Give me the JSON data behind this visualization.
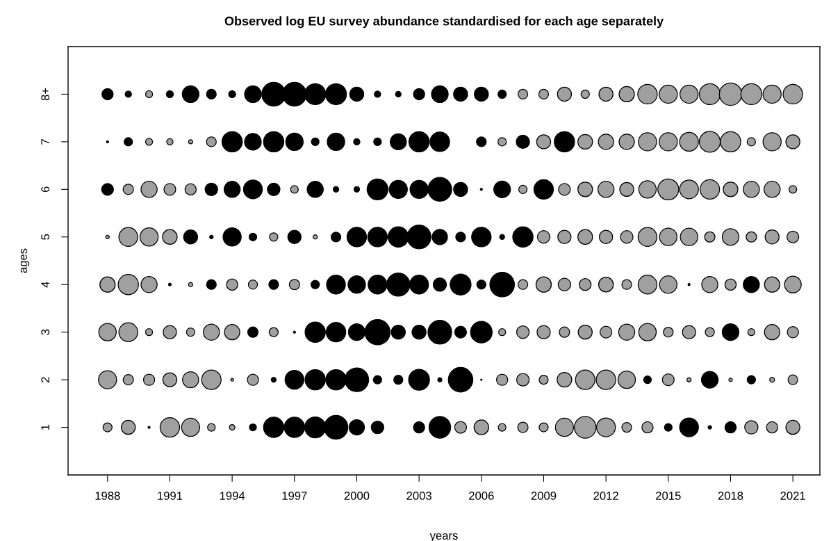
{
  "chart_data": {
    "type": "bubble",
    "title": "Observed log EU survey abundance standardised for each age separately",
    "xlabel": "years",
    "ylabel": "ages",
    "x": [
      1988,
      1989,
      1990,
      1991,
      1992,
      1993,
      1994,
      1995,
      1996,
      1997,
      1998,
      1999,
      2000,
      2001,
      2002,
      2003,
      2004,
      2005,
      2006,
      2007,
      2008,
      2009,
      2010,
      2011,
      2012,
      2013,
      2014,
      2015,
      2016,
      2017,
      2018,
      2019,
      2020,
      2021
    ],
    "xlim": [
      1986.1,
      2022.3
    ],
    "xticks": [
      1988,
      1991,
      1994,
      1997,
      2000,
      2003,
      2006,
      2009,
      2012,
      2015,
      2018,
      2021
    ],
    "ylim": [
      0,
      9
    ],
    "yticks": [
      1,
      2,
      3,
      4,
      5,
      6,
      7,
      {
        "value": 8,
        "label": "8+"
      }
    ],
    "grid": false,
    "legend": false,
    "series": [
      {
        "values": [
          1,
          1,
          1,
          1,
          1,
          1,
          1,
          1,
          1,
          1,
          1,
          1,
          1,
          1,
          null,
          1,
          1,
          1,
          1,
          1,
          1,
          1,
          1,
          1,
          1,
          1,
          1,
          1,
          1,
          1,
          1,
          1,
          1,
          1
        ],
        "sizes": [
          0.13,
          0.31,
          0.007,
          0.6,
          0.52,
          0.093,
          0.049,
          0.077,
          0.65,
          0.65,
          0.69,
          0.89,
          0.37,
          0.25,
          null,
          0.2,
          0.74,
          0.22,
          0.34,
          0.093,
          0.17,
          0.13,
          0.52,
          0.74,
          0.56,
          0.15,
          0.2,
          0.093,
          0.56,
          0.019,
          0.2,
          0.28,
          0.2,
          0.31
        ],
        "colors": [
          "#a0a0a0",
          "#a0a0a0",
          "#000000",
          "#a0a0a0",
          "#a0a0a0",
          "#a0a0a0",
          "#a0a0a0",
          "#000000",
          "#000000",
          "#000000",
          "#000000",
          "#000000",
          "#000000",
          "#000000",
          "#000000",
          "#000000",
          "#000000",
          "#a0a0a0",
          "#a0a0a0",
          "#a0a0a0",
          "#a0a0a0",
          "#a0a0a0",
          "#a0a0a0",
          "#a0a0a0",
          "#a0a0a0",
          "#a0a0a0",
          "#a0a0a0",
          "#000000",
          "#000000",
          "#000000",
          "#000000",
          "#a0a0a0",
          "#a0a0a0",
          "#a0a0a0"
        ]
      },
      {
        "values": [
          2,
          2,
          2,
          2,
          2,
          2,
          2,
          2,
          2,
          2,
          2,
          2,
          2,
          2,
          2,
          2,
          2,
          2,
          2,
          2,
          2,
          2,
          2,
          2,
          2,
          2,
          2,
          2,
          2,
          2,
          2,
          2,
          2,
          2
        ],
        "sizes": [
          0.52,
          0.17,
          0.2,
          0.31,
          0.41,
          0.6,
          0.012,
          0.2,
          0.038,
          0.56,
          0.65,
          0.65,
          0.89,
          0.11,
          0.13,
          0.69,
          0.028,
          0.95,
          0.003,
          0.2,
          0.25,
          0.13,
          0.34,
          0.6,
          0.6,
          0.48,
          0.093,
          0.22,
          0.028,
          0.44,
          0.019,
          0.11,
          0.038,
          0.15
        ],
        "colors": [
          "#a0a0a0",
          "#a0a0a0",
          "#a0a0a0",
          "#a0a0a0",
          "#a0a0a0",
          "#a0a0a0",
          "#a0a0a0",
          "#a0a0a0",
          "#000000",
          "#000000",
          "#000000",
          "#000000",
          "#000000",
          "#000000",
          "#000000",
          "#000000",
          "#000000",
          "#000000",
          "#000000",
          "#a0a0a0",
          "#a0a0a0",
          "#a0a0a0",
          "#a0a0a0",
          "#a0a0a0",
          "#a0a0a0",
          "#a0a0a0",
          "#000000",
          "#a0a0a0",
          "#a0a0a0",
          "#000000",
          "#a0a0a0",
          "#000000",
          "#a0a0a0",
          "#a0a0a0"
        ]
      },
      {
        "values": [
          3,
          3,
          3,
          3,
          3,
          3,
          3,
          3,
          3,
          3,
          3,
          3,
          3,
          3,
          3,
          3,
          3,
          3,
          3,
          3,
          3,
          3,
          3,
          3,
          3,
          3,
          3,
          3,
          3,
          3,
          3,
          3,
          3,
          3
        ],
        "sizes": [
          0.48,
          0.56,
          0.077,
          0.28,
          0.11,
          0.41,
          0.37,
          0.17,
          0.13,
          0.007,
          0.65,
          0.6,
          0.44,
          1,
          0.31,
          0.31,
          0.89,
          0.22,
          0.74,
          0.077,
          0.25,
          0.28,
          0.17,
          0.31,
          0.22,
          0.41,
          0.48,
          0.15,
          0.28,
          0.13,
          0.44,
          0.077,
          0.37,
          0.2
        ],
        "colors": [
          "#a0a0a0",
          "#a0a0a0",
          "#a0a0a0",
          "#a0a0a0",
          "#a0a0a0",
          "#a0a0a0",
          "#a0a0a0",
          "#000000",
          "#a0a0a0",
          "#000000",
          "#000000",
          "#000000",
          "#000000",
          "#000000",
          "#000000",
          "#000000",
          "#000000",
          "#000000",
          "#000000",
          "#a0a0a0",
          "#a0a0a0",
          "#a0a0a0",
          "#a0a0a0",
          "#a0a0a0",
          "#a0a0a0",
          "#a0a0a0",
          "#a0a0a0",
          "#a0a0a0",
          "#a0a0a0",
          "#a0a0a0",
          "#000000",
          "#a0a0a0",
          "#a0a0a0",
          "#a0a0a0"
        ]
      },
      {
        "values": [
          4,
          4,
          4,
          4,
          4,
          4,
          4,
          4,
          4,
          4,
          4,
          4,
          4,
          4,
          4,
          4,
          4,
          4,
          4,
          4,
          4,
          4,
          4,
          4,
          4,
          4,
          4,
          4,
          4,
          4,
          4,
          4,
          4,
          4
        ],
        "sizes": [
          0.37,
          0.65,
          0.41,
          0.012,
          0.028,
          0.15,
          0.2,
          0.13,
          0.15,
          0.17,
          0.11,
          0.56,
          0.48,
          0.56,
          0.84,
          0.56,
          0.28,
          0.69,
          0.13,
          0.95,
          0.15,
          0.37,
          0.25,
          0.22,
          0.34,
          0.15,
          0.56,
          0.48,
          0.007,
          0.41,
          0.2,
          0.41,
          0.37,
          0.44
        ],
        "colors": [
          "#a0a0a0",
          "#a0a0a0",
          "#a0a0a0",
          "#000000",
          "#a0a0a0",
          "#000000",
          "#a0a0a0",
          "#a0a0a0",
          "#000000",
          "#a0a0a0",
          "#000000",
          "#000000",
          "#000000",
          "#000000",
          "#000000",
          "#000000",
          "#000000",
          "#000000",
          "#000000",
          "#000000",
          "#a0a0a0",
          "#a0a0a0",
          "#a0a0a0",
          "#a0a0a0",
          "#a0a0a0",
          "#a0a0a0",
          "#a0a0a0",
          "#a0a0a0",
          "#000000",
          "#a0a0a0",
          "#a0a0a0",
          "#000000",
          "#a0a0a0",
          "#a0a0a0"
        ]
      },
      {
        "values": [
          5,
          5,
          5,
          5,
          5,
          5,
          5,
          5,
          5,
          5,
          5,
          5,
          5,
          5,
          5,
          5,
          5,
          5,
          5,
          5,
          5,
          5,
          5,
          5,
          5,
          5,
          5,
          5,
          5,
          5,
          5,
          5,
          5,
          5
        ],
        "sizes": [
          0.019,
          0.56,
          0.52,
          0.34,
          0.31,
          0.019,
          0.52,
          0.093,
          0.11,
          0.28,
          0.028,
          0.15,
          0.6,
          0.6,
          0.65,
          0.89,
          0.37,
          0.15,
          0.6,
          0.038,
          0.65,
          0.25,
          0.28,
          0.34,
          0.28,
          0.25,
          0.56,
          0.48,
          0.48,
          0.17,
          0.44,
          0.17,
          0.31,
          0.22
        ],
        "colors": [
          "#a0a0a0",
          "#a0a0a0",
          "#a0a0a0",
          "#a0a0a0",
          "#000000",
          "#000000",
          "#000000",
          "#000000",
          "#a0a0a0",
          "#000000",
          "#a0a0a0",
          "#000000",
          "#000000",
          "#000000",
          "#000000",
          "#000000",
          "#000000",
          "#000000",
          "#000000",
          "#000000",
          "#000000",
          "#a0a0a0",
          "#a0a0a0",
          "#a0a0a0",
          "#a0a0a0",
          "#a0a0a0",
          "#a0a0a0",
          "#a0a0a0",
          "#a0a0a0",
          "#a0a0a0",
          "#a0a0a0",
          "#a0a0a0",
          "#a0a0a0",
          "#a0a0a0"
        ]
      },
      {
        "values": [
          6,
          6,
          6,
          6,
          6,
          6,
          6,
          6,
          6,
          6,
          6,
          6,
          6,
          6,
          6,
          6,
          6,
          6,
          6,
          6,
          6,
          6,
          6,
          6,
          6,
          6,
          6,
          6,
          6,
          6,
          6,
          6,
          6,
          6
        ],
        "sizes": [
          0.22,
          0.17,
          0.41,
          0.22,
          0.2,
          0.25,
          0.41,
          0.56,
          0.25,
          0.093,
          0.41,
          0.049,
          0.049,
          0.69,
          0.52,
          0.52,
          0.89,
          0.31,
          0.007,
          0.44,
          0.11,
          0.6,
          0.22,
          0.34,
          0.41,
          0.31,
          0.48,
          0.69,
          0.56,
          0.6,
          0.34,
          0.41,
          0.41,
          0.093
        ],
        "colors": [
          "#000000",
          "#a0a0a0",
          "#a0a0a0",
          "#a0a0a0",
          "#a0a0a0",
          "#000000",
          "#000000",
          "#000000",
          "#000000",
          "#a0a0a0",
          "#000000",
          "#000000",
          "#000000",
          "#000000",
          "#000000",
          "#000000",
          "#000000",
          "#000000",
          "#000000",
          "#000000",
          "#a0a0a0",
          "#000000",
          "#a0a0a0",
          "#a0a0a0",
          "#a0a0a0",
          "#a0a0a0",
          "#a0a0a0",
          "#a0a0a0",
          "#a0a0a0",
          "#a0a0a0",
          "#a0a0a0",
          "#a0a0a0",
          "#a0a0a0",
          "#a0a0a0"
        ]
      },
      {
        "values": [
          7,
          7,
          7,
          7,
          7,
          7,
          7,
          7,
          7,
          7,
          7,
          7,
          7,
          7,
          7,
          7,
          7,
          null,
          7,
          7,
          7,
          7,
          7,
          7,
          7,
          7,
          7,
          7,
          7,
          7,
          7,
          7,
          7,
          7
        ],
        "sizes": [
          0.007,
          0.11,
          0.077,
          0.063,
          0.028,
          0.15,
          0.65,
          0.44,
          0.65,
          0.48,
          0.093,
          0.48,
          0.063,
          0.093,
          0.41,
          0.65,
          0.6,
          null,
          0.15,
          0.11,
          0.28,
          0.31,
          0.65,
          0.34,
          0.37,
          0.37,
          0.52,
          0.52,
          0.56,
          0.69,
          0.65,
          0.11,
          0.52,
          0.31
        ],
        "colors": [
          "#000000",
          "#000000",
          "#a0a0a0",
          "#a0a0a0",
          "#a0a0a0",
          "#a0a0a0",
          "#000000",
          "#000000",
          "#000000",
          "#000000",
          "#000000",
          "#000000",
          "#000000",
          "#000000",
          "#000000",
          "#000000",
          "#000000",
          "#000000",
          "#000000",
          "#a0a0a0",
          "#000000",
          "#a0a0a0",
          "#000000",
          "#a0a0a0",
          "#a0a0a0",
          "#a0a0a0",
          "#a0a0a0",
          "#a0a0a0",
          "#a0a0a0",
          "#a0a0a0",
          "#a0a0a0",
          "#a0a0a0",
          "#a0a0a0",
          "#a0a0a0"
        ]
      },
      {
        "values": [
          8,
          8,
          8,
          8,
          8,
          8,
          8,
          8,
          8,
          8,
          8,
          8,
          8,
          8,
          8,
          8,
          8,
          8,
          8,
          8,
          8,
          8,
          8,
          8,
          8,
          8,
          8,
          8,
          8,
          8,
          8,
          8,
          8,
          8
        ],
        "sizes": [
          0.2,
          0.063,
          0.077,
          0.077,
          0.44,
          0.15,
          0.077,
          0.44,
          0.89,
          0.89,
          0.69,
          0.69,
          0.31,
          0.063,
          0.049,
          0.2,
          0.44,
          0.31,
          0.31,
          0.11,
          0.15,
          0.15,
          0.31,
          0.11,
          0.31,
          0.37,
          0.6,
          0.52,
          0.52,
          0.69,
          0.79,
          0.69,
          0.52,
          0.6
        ],
        "colors": [
          "#000000",
          "#000000",
          "#a0a0a0",
          "#000000",
          "#000000",
          "#000000",
          "#000000",
          "#000000",
          "#000000",
          "#000000",
          "#000000",
          "#000000",
          "#000000",
          "#000000",
          "#000000",
          "#000000",
          "#000000",
          "#000000",
          "#000000",
          "#000000",
          "#a0a0a0",
          "#a0a0a0",
          "#a0a0a0",
          "#a0a0a0",
          "#a0a0a0",
          "#a0a0a0",
          "#a0a0a0",
          "#a0a0a0",
          "#a0a0a0",
          "#a0a0a0",
          "#a0a0a0",
          "#a0a0a0",
          "#a0a0a0",
          "#a0a0a0"
        ]
      }
    ]
  }
}
